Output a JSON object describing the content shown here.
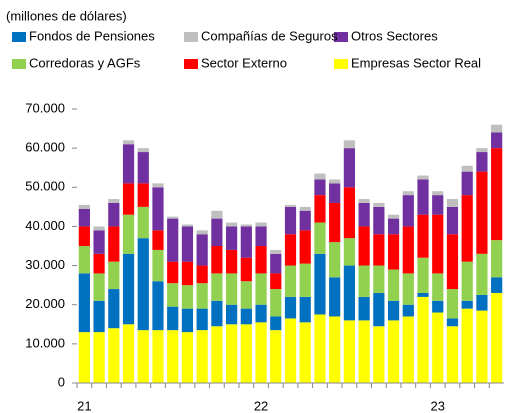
{
  "chart_data": {
    "type": "stacked_bar",
    "subtitle": "(millones de dólares)",
    "categories": [
      "21",
      null,
      null,
      null,
      null,
      null,
      null,
      null,
      null,
      null,
      null,
      null,
      "22",
      null,
      null,
      null,
      null,
      null,
      null,
      null,
      null,
      null,
      null,
      null,
      "23",
      null,
      null,
      null,
      null
    ],
    "series": [
      {
        "name": "Empresas Sector Real",
        "color": "#ffff00",
        "values": [
          13000,
          13000,
          14000,
          15000,
          13500,
          13500,
          13500,
          13000,
          13500,
          14500,
          15000,
          15000,
          15500,
          13500,
          16500,
          15500,
          17500,
          17000,
          16000,
          16000,
          14500,
          16000,
          17000,
          22000,
          18000,
          14500,
          19000,
          18500,
          23000
        ]
      },
      {
        "name": "Fondos de Pensiones",
        "color": "#0070c0",
        "values": [
          15000,
          8000,
          10000,
          18000,
          23500,
          12500,
          6000,
          6000,
          5500,
          6500,
          5000,
          4000,
          4500,
          3500,
          5500,
          6500,
          15500,
          10000,
          14000,
          6000,
          8500,
          5000,
          3000,
          1000,
          3000,
          2000,
          2000,
          4000,
          4000
        ]
      },
      {
        "name": "Corredoras y AGFs",
        "color": "#92d050",
        "values": [
          7000,
          7000,
          7000,
          10000,
          8000,
          8000,
          6000,
          6000,
          6500,
          7000,
          8000,
          7000,
          8000,
          7000,
          8000,
          8500,
          8000,
          9000,
          7000,
          8000,
          7000,
          8000,
          8000,
          9000,
          7000,
          7500,
          10000,
          10500,
          9500
        ]
      },
      {
        "name": "Sector Externo",
        "color": "#ff0000",
        "values": [
          5000,
          5000,
          9000,
          8000,
          6000,
          5000,
          5500,
          6000,
          4500,
          7000,
          6000,
          6000,
          7000,
          4000,
          8000,
          8500,
          7000,
          10000,
          13000,
          10000,
          8000,
          9000,
          12000,
          11000,
          15000,
          14000,
          17000,
          21000,
          23500
        ]
      },
      {
        "name": "Otros Sectores",
        "color": "#7030a0",
        "values": [
          4500,
          6000,
          6000,
          10000,
          8000,
          11000,
          11000,
          9000,
          8000,
          7000,
          6000,
          8000,
          5000,
          5000,
          7000,
          5000,
          4000,
          5000,
          10000,
          6000,
          7000,
          4000,
          8000,
          9000,
          5000,
          7000,
          6000,
          5000,
          4000
        ]
      },
      {
        "name": "Compañías de Seguros",
        "color": "#bfbfbf",
        "values": [
          1000,
          1000,
          1000,
          1000,
          1000,
          1000,
          500,
          500,
          1000,
          2000,
          1000,
          500,
          1000,
          1000,
          500,
          1000,
          1500,
          1000,
          2000,
          1000,
          1000,
          1000,
          1000,
          1000,
          1000,
          2000,
          1500,
          1000,
          2000
        ]
      }
    ],
    "ylim": [
      0,
      70000
    ],
    "yticks": [
      0,
      {
        "value": 10000,
        "label": "10.000"
      },
      {
        "value": 20000,
        "label": "20.000"
      },
      {
        "value": 30000,
        "label": "30.000"
      },
      {
        "value": 40000,
        "label": "40.000"
      },
      {
        "value": 50000,
        "label": "50.000"
      },
      {
        "value": 60000,
        "label": "60.000"
      },
      {
        "value": 70000,
        "label": "70.000"
      }
    ],
    "grid": false
  }
}
